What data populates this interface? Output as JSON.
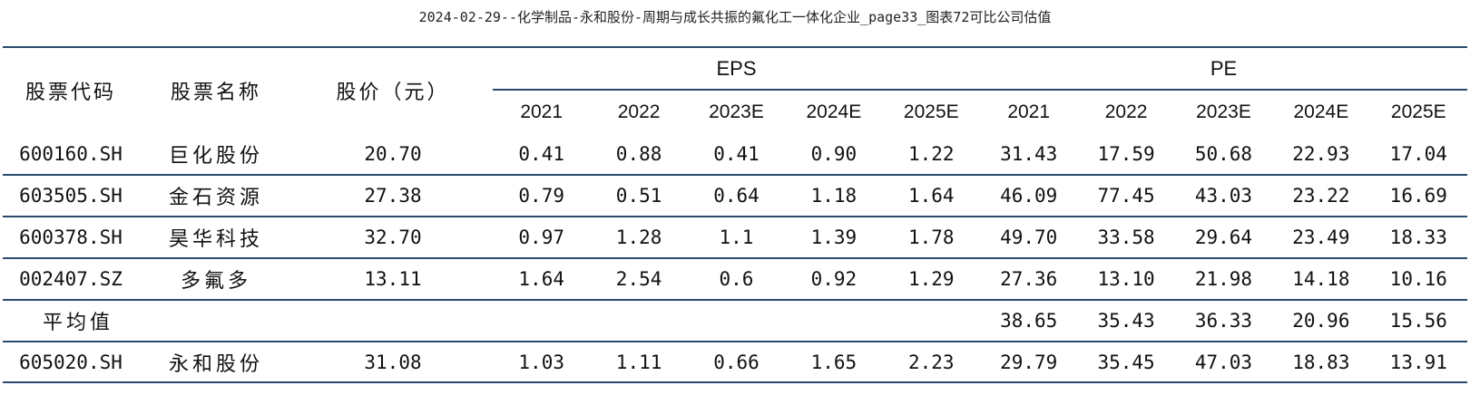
{
  "title": "2024-02-29--化学制品-永和股份-周期与成长共振的氟化工一体化企业_page33_图表72可比公司估值",
  "header": {
    "code": "股票代码",
    "name": "股票名称",
    "price": "股价（元）",
    "eps_group": "EPS",
    "pe_group": "PE",
    "eps_years": [
      "2021",
      "2022",
      "2023E",
      "2024E",
      "2025E"
    ],
    "pe_years": [
      "2021",
      "2022",
      "2023E",
      "2024E",
      "2025E"
    ]
  },
  "rows": [
    {
      "code": "600160.SH",
      "name": "巨化股份",
      "price": "20.70",
      "eps": [
        "0.41",
        "0.88",
        "0.41",
        "0.90",
        "1.22"
      ],
      "pe": [
        "31.43",
        "17.59",
        "50.68",
        "22.93",
        "17.04"
      ]
    },
    {
      "code": "603505.SH",
      "name": "金石资源",
      "price": "27.38",
      "eps": [
        "0.79",
        "0.51",
        "0.64",
        "1.18",
        "1.64"
      ],
      "pe": [
        "46.09",
        "77.45",
        "43.03",
        "23.22",
        "16.69"
      ]
    },
    {
      "code": "600378.SH",
      "name": "昊华科技",
      "price": "32.70",
      "eps": [
        "0.97",
        "1.28",
        "1.1",
        "1.39",
        "1.78"
      ],
      "pe": [
        "49.70",
        "33.58",
        "29.64",
        "23.49",
        "18.33"
      ]
    },
    {
      "code": "002407.SZ",
      "name": "多氟多",
      "price": "13.11",
      "eps": [
        "1.64",
        "2.54",
        "0.6",
        "0.92",
        "1.29"
      ],
      "pe": [
        "27.36",
        "13.10",
        "21.98",
        "14.18",
        "10.16"
      ]
    }
  ],
  "average": {
    "label": "平均值",
    "pe": [
      "38.65",
      "35.43",
      "36.33",
      "20.96",
      "15.56"
    ]
  },
  "self": {
    "code": "605020.SH",
    "name": "永和股份",
    "price": "31.08",
    "eps": [
      "1.03",
      "1.11",
      "0.66",
      "1.65",
      "2.23"
    ],
    "pe": [
      "29.79",
      "35.45",
      "47.03",
      "18.83",
      "13.91"
    ]
  },
  "colors": {
    "rule": "#2a4a6b",
    "text": "#111111"
  }
}
